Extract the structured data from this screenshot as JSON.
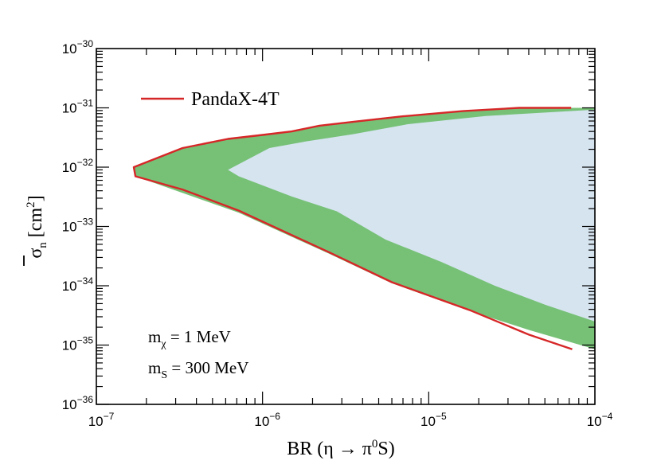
{
  "chart_data": {
    "type": "area",
    "x_scale": "log",
    "y_scale": "log",
    "xlim": [
      1e-07,
      0.0001
    ],
    "ylim": [
      1e-36,
      1e-30
    ],
    "x_ticks": [
      {
        "value": 1e-07,
        "base": "10",
        "exp": "−7"
      },
      {
        "value": 1e-06,
        "base": "10",
        "exp": "−6"
      },
      {
        "value": 1e-05,
        "base": "10",
        "exp": "−5"
      },
      {
        "value": 0.0001,
        "base": "10",
        "exp": "−4"
      }
    ],
    "y_ticks": [
      {
        "value": 1e-36,
        "base": "10",
        "exp": "−36"
      },
      {
        "value": 1e-35,
        "base": "10",
        "exp": "−35"
      },
      {
        "value": 1e-34,
        "base": "10",
        "exp": "−34"
      },
      {
        "value": 1e-33,
        "base": "10",
        "exp": "−33"
      },
      {
        "value": 1e-32,
        "base": "10",
        "exp": "−32"
      },
      {
        "value": 1e-31,
        "base": "10",
        "exp": "−31"
      },
      {
        "value": 1e-30,
        "base": "10",
        "exp": "−30"
      }
    ],
    "xlabel": {
      "main": "BR (η → π",
      "sup": "0",
      "tail": "S)"
    },
    "ylabel": {
      "main": "σ",
      "sub": "n",
      "mid": " [cm",
      "sup": "2",
      "tail": "]"
    },
    "legend": {
      "label": "PandaX-4T",
      "color": "#d62728",
      "position": "top-left"
    },
    "annotations": [
      {
        "name": "mchi",
        "main": "m",
        "sub": "χ",
        "tail": " = 1 MeV"
      },
      {
        "name": "ms",
        "main": "m",
        "sub": "S",
        "tail": " = 300 MeV"
      }
    ],
    "series": [
      {
        "name": "green-band",
        "kind": "fill",
        "color": "#77c177",
        "points": [
          [
            1.68e-07,
            1e-32
          ],
          [
            3.3e-07,
            2.1e-32
          ],
          [
            6.2e-07,
            3e-32
          ],
          [
            1e-06,
            3.5e-32
          ],
          [
            1.5e-06,
            4e-32
          ],
          [
            2.2e-06,
            5e-32
          ],
          [
            3.5e-06,
            5.8e-32
          ],
          [
            7e-06,
            7.2e-32
          ],
          [
            1.6e-05,
            8.8e-32
          ],
          [
            3.5e-05,
            1e-31
          ],
          [
            0.0001,
            1e-31
          ],
          [
            0.0001,
            8.5e-36
          ],
          [
            4e-05,
            1.8e-35
          ],
          [
            1.8e-05,
            3.7e-35
          ],
          [
            6e-06,
            1.1e-34
          ],
          [
            2.5e-06,
            3.5e-34
          ],
          [
            7.2e-07,
            1.7e-33
          ],
          [
            1.72e-07,
            7e-33
          ]
        ]
      },
      {
        "name": "excluded-region",
        "kind": "fill",
        "color": "#d6e4f0",
        "points": [
          [
            6.2e-07,
            9e-33
          ],
          [
            1.1e-06,
            2.1e-32
          ],
          [
            1.8e-06,
            2.7e-32
          ],
          [
            3.5e-06,
            3.6e-32
          ],
          [
            7.5e-06,
            5.3e-32
          ],
          [
            2.2e-05,
            7.3e-32
          ],
          [
            0.0001,
            9.3e-32
          ],
          [
            0.0001,
            2.5e-35
          ],
          [
            5e-05,
            4.8e-35
          ],
          [
            2.5e-05,
            1e-34
          ],
          [
            1.2e-05,
            2.5e-34
          ],
          [
            5.5e-06,
            6e-34
          ],
          [
            2.8e-06,
            1.8e-33
          ],
          [
            1.5e-06,
            3.2e-33
          ],
          [
            7.2e-07,
            7e-33
          ]
        ]
      },
      {
        "name": "PandaX-4T",
        "kind": "line",
        "color": "#d62728",
        "points": [
          [
            7.2e-05,
            1e-31
          ],
          [
            3.5e-05,
            1e-31
          ],
          [
            1.6e-05,
            8.8e-32
          ],
          [
            7e-06,
            7.2e-32
          ],
          [
            3.5e-06,
            5.8e-32
          ],
          [
            2.2e-06,
            5e-32
          ],
          [
            1.5e-06,
            4e-32
          ],
          [
            1e-06,
            3.5e-32
          ],
          [
            6.2e-07,
            3e-32
          ],
          [
            3.3e-07,
            2.1e-32
          ],
          [
            1.68e-07,
            1e-32
          ],
          [
            1.72e-07,
            7e-33
          ],
          [
            3.3e-07,
            4.2e-33
          ],
          [
            7.2e-07,
            1.85e-33
          ],
          [
            2.5e-06,
            3.7e-34
          ],
          [
            6e-06,
            1.15e-34
          ],
          [
            1.8e-05,
            3.8e-35
          ],
          [
            4e-05,
            1.5e-35
          ],
          [
            7.3e-05,
            8.5e-36
          ]
        ]
      }
    ]
  }
}
